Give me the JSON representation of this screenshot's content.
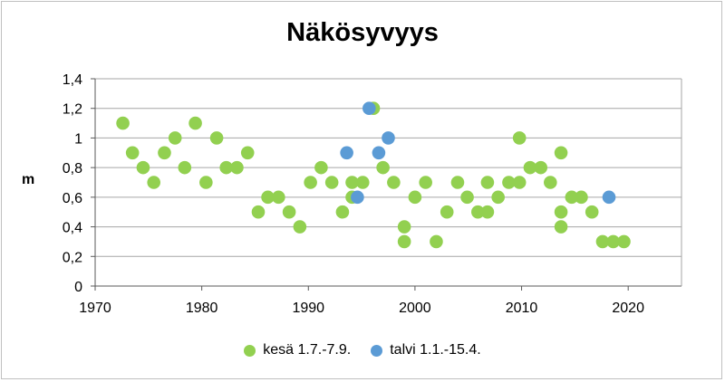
{
  "chart_data": {
    "type": "scatter",
    "title": "Näkösyvyys",
    "xlabel": "",
    "ylabel": "m",
    "xlim": [
      1970,
      2025
    ],
    "ylim": [
      0,
      1.4
    ],
    "x_ticks": [
      1970,
      1980,
      1990,
      2000,
      2010,
      2020
    ],
    "y_ticks": [
      0,
      0.2,
      0.4,
      0.6,
      0.8,
      1,
      1.2,
      1.4
    ],
    "x_tick_labels": [
      "1970",
      "1980",
      "1990",
      "2000",
      "2010",
      "2020"
    ],
    "y_tick_labels": [
      "0",
      "0,2",
      "0,4",
      "0,6",
      "0,8",
      "1",
      "1,2",
      "1,4"
    ],
    "grid": "horizontal",
    "legend": "bottom",
    "series": [
      {
        "name": "kesä 1.7.-7.9.",
        "color": "#92d050",
        "points": [
          [
            1972.6,
            1.1
          ],
          [
            1973.5,
            0.9
          ],
          [
            1974.5,
            0.8
          ],
          [
            1975.5,
            0.7
          ],
          [
            1976.5,
            0.9
          ],
          [
            1977.5,
            1.0
          ],
          [
            1978.4,
            0.8
          ],
          [
            1979.4,
            1.1
          ],
          [
            1980.4,
            0.7
          ],
          [
            1981.4,
            1.0
          ],
          [
            1982.3,
            0.8
          ],
          [
            1983.3,
            0.8
          ],
          [
            1984.3,
            0.9
          ],
          [
            1985.3,
            0.5
          ],
          [
            1986.2,
            0.6
          ],
          [
            1987.2,
            0.6
          ],
          [
            1988.2,
            0.5
          ],
          [
            1989.2,
            0.4
          ],
          [
            1990.2,
            0.7
          ],
          [
            1991.2,
            0.8
          ],
          [
            1992.2,
            0.7
          ],
          [
            1993.2,
            0.5
          ],
          [
            1994.1,
            0.6
          ],
          [
            1994.1,
            0.7
          ],
          [
            1995.1,
            0.7
          ],
          [
            1996.1,
            1.2
          ],
          [
            1997.0,
            0.8
          ],
          [
            1998.0,
            0.7
          ],
          [
            1999.0,
            0.4
          ],
          [
            1999.0,
            0.3
          ],
          [
            2000.0,
            0.6
          ],
          [
            2001.0,
            0.7
          ],
          [
            2002.0,
            0.3
          ],
          [
            2003.0,
            0.5
          ],
          [
            2004.0,
            0.7
          ],
          [
            2004.9,
            0.6
          ],
          [
            2005.9,
            0.5
          ],
          [
            2006.8,
            0.7
          ],
          [
            2006.8,
            0.5
          ],
          [
            2007.8,
            0.6
          ],
          [
            2008.8,
            0.7
          ],
          [
            2009.8,
            0.7
          ],
          [
            2009.8,
            1.0
          ],
          [
            2010.8,
            0.8
          ],
          [
            2011.8,
            0.8
          ],
          [
            2012.7,
            0.7
          ],
          [
            2013.7,
            0.9
          ],
          [
            2013.7,
            0.5
          ],
          [
            2013.7,
            0.4
          ],
          [
            2014.7,
            0.6
          ],
          [
            2015.6,
            0.6
          ],
          [
            2016.6,
            0.5
          ],
          [
            2017.6,
            0.3
          ],
          [
            2018.6,
            0.3
          ],
          [
            2019.6,
            0.3
          ]
        ]
      },
      {
        "name": "talvi 1.1.-15.4.",
        "color": "#5b9bd5",
        "points": [
          [
            1993.6,
            0.9
          ],
          [
            1994.6,
            0.6
          ],
          [
            1995.7,
            1.2
          ],
          [
            1996.6,
            0.9
          ],
          [
            1997.5,
            1.0
          ],
          [
            2018.2,
            0.6
          ]
        ]
      }
    ]
  }
}
